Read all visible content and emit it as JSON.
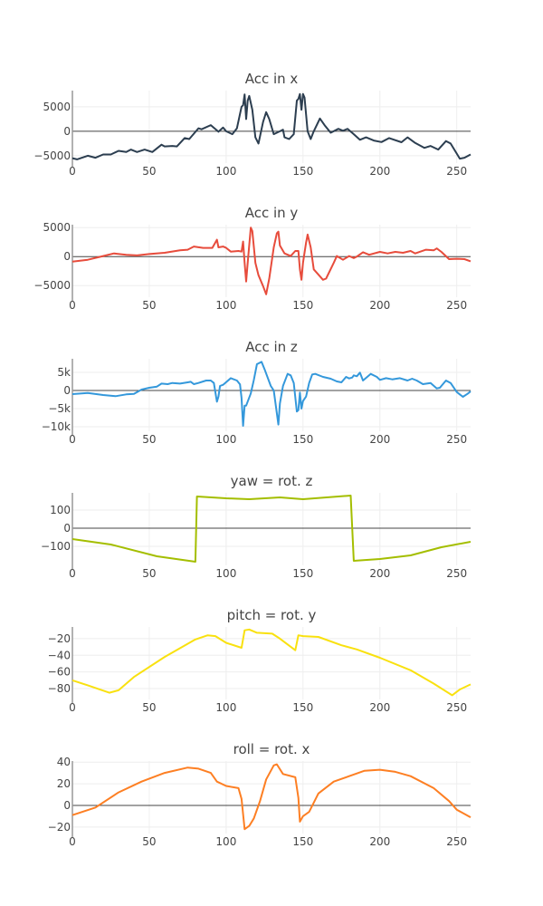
{
  "chart_data": [
    {
      "type": "line",
      "title": "Acc in x",
      "color": "#2c3e50",
      "xlim": [
        0,
        259
      ],
      "ylim": [
        -6500,
        8300
      ],
      "xticks": [
        0,
        50,
        100,
        150,
        200,
        250
      ],
      "xtick_labels": [
        "0",
        "50",
        "100",
        "150",
        "200",
        "250"
      ],
      "yticks": [
        5000,
        0,
        -5000
      ],
      "ytick_labels": [
        "5000",
        "0",
        "−5000"
      ],
      "x": [
        0,
        3,
        10,
        15,
        20,
        25,
        30,
        35,
        38,
        42,
        47,
        52,
        58,
        60,
        65,
        68,
        73,
        76,
        82,
        84,
        90,
        95,
        98,
        100,
        104,
        107,
        110,
        111,
        112,
        113,
        114,
        115,
        117,
        119,
        121,
        124,
        126,
        128,
        131,
        135,
        137,
        138,
        141,
        144,
        146,
        147,
        148,
        149,
        150,
        151,
        153,
        155,
        157,
        161,
        164,
        168,
        173,
        176,
        179,
        183,
        187,
        191,
        196,
        201,
        206,
        214,
        218,
        223,
        229,
        233,
        238,
        243,
        246,
        252,
        255,
        259
      ],
      "y": [
        -5500,
        -5750,
        -5000,
        -5400,
        -4750,
        -4750,
        -4000,
        -4250,
        -3750,
        -4250,
        -3750,
        -4250,
        -2750,
        -3100,
        -3000,
        -3100,
        -1400,
        -1600,
        600,
        400,
        1250,
        -100,
        750,
        0,
        -600,
        600,
        5000,
        5300,
        7500,
        2500,
        6250,
        7200,
        4400,
        -1250,
        -2500,
        1900,
        3900,
        2500,
        -600,
        0,
        300,
        -1250,
        -1600,
        -600,
        6250,
        6600,
        7600,
        4400,
        7600,
        6900,
        0,
        -1600,
        0,
        2600,
        1250,
        -300,
        500,
        100,
        500,
        -600,
        -1750,
        -1250,
        -1900,
        -2200,
        -1400,
        -2250,
        -1250,
        -2400,
        -3400,
        -3000,
        -3750,
        -2000,
        -2500,
        -5600,
        -5400,
        -4750
      ]
    },
    {
      "type": "line",
      "title": "Acc in y",
      "color": "#e74c3c",
      "xlim": [
        0,
        259
      ],
      "ylim": [
        -7000,
        5500
      ],
      "xticks": [
        0,
        50,
        100,
        150,
        200,
        250
      ],
      "xtick_labels": [
        "0",
        "50",
        "100",
        "150",
        "200",
        "250"
      ],
      "yticks": [
        5000,
        0,
        -5000
      ],
      "ytick_labels": [
        "5000",
        "0",
        "−5000"
      ],
      "x": [
        0,
        10,
        20,
        27,
        35,
        42,
        50,
        60,
        70,
        75,
        79,
        85,
        91,
        94,
        95,
        98,
        100,
        103,
        108,
        110,
        111,
        112,
        113,
        114,
        116,
        117,
        119,
        121,
        124,
        126,
        128,
        131,
        133,
        134,
        135,
        138,
        142,
        145,
        147,
        148,
        149,
        150,
        152,
        153,
        155,
        157,
        163,
        165,
        170,
        172,
        176,
        180,
        183,
        185,
        189,
        193,
        200,
        205,
        210,
        215,
        220,
        223,
        230,
        235,
        237,
        240,
        245,
        250,
        255,
        259
      ],
      "y": [
        -860,
        -540,
        100,
        540,
        320,
        200,
        430,
        650,
        1080,
        1190,
        1730,
        1500,
        1500,
        2900,
        1600,
        1730,
        1500,
        860,
        970,
        860,
        2600,
        -1080,
        -4300,
        -1080,
        5000,
        4400,
        -1080,
        -3200,
        -5100,
        -6500,
        -3800,
        1600,
        4000,
        4300,
        1900,
        540,
        100,
        970,
        970,
        -2200,
        -4000,
        -1080,
        2400,
        3800,
        1600,
        -2200,
        -4000,
        -3800,
        -1080,
        100,
        -540,
        100,
        -270,
        0,
        750,
        320,
        810,
        540,
        810,
        650,
        970,
        540,
        1190,
        1080,
        1400,
        810,
        -430,
        -380,
        -430,
        -810
      ]
    },
    {
      "type": "line",
      "title": "Acc in z",
      "color": "#3498db",
      "xlim": [
        0,
        259
      ],
      "ylim": [
        -11250,
        8750
      ],
      "xticks": [
        0,
        50,
        100,
        150,
        200,
        250
      ],
      "xtick_labels": [
        "0",
        "50",
        "100",
        "150",
        "200",
        "250"
      ],
      "yticks": [
        5000,
        0,
        -5000,
        -10000
      ],
      "ytick_labels": [
        "5k",
        "0",
        "−5k",
        "−10k"
      ],
      "x": [
        0,
        10,
        20,
        28,
        35,
        40,
        45,
        50,
        55,
        58,
        62,
        65,
        70,
        75,
        77,
        79,
        82,
        87,
        90,
        92,
        94,
        95,
        96,
        98,
        103,
        107,
        109,
        110,
        111,
        112,
        113,
        116,
        118,
        120,
        123,
        125,
        129,
        131,
        134,
        135,
        137,
        140,
        142,
        144,
        146,
        147,
        148,
        149,
        150,
        152,
        154,
        156,
        158,
        163,
        168,
        172,
        175,
        178,
        180,
        182,
        183,
        185,
        187,
        189,
        194,
        198,
        200,
        204,
        208,
        213,
        218,
        221,
        224,
        228,
        233,
        237,
        239,
        243,
        246,
        250,
        254,
        257,
        259
      ],
      "y": [
        -1000,
        -670,
        -1250,
        -1580,
        -1080,
        -920,
        250,
        750,
        1080,
        1900,
        1750,
        2080,
        1900,
        2250,
        2400,
        1750,
        2080,
        2750,
        2750,
        2080,
        -3100,
        -1670,
        1250,
        1580,
        3400,
        2750,
        1670,
        -2080,
        -9750,
        -4170,
        -4170,
        -830,
        2920,
        7250,
        7900,
        5830,
        1250,
        0,
        -9400,
        -3580,
        1250,
        4580,
        4170,
        2080,
        -5830,
        -5420,
        -580,
        -5000,
        -2920,
        -1670,
        2080,
        4420,
        4580,
        3750,
        3250,
        2500,
        2250,
        3750,
        3330,
        3580,
        4170,
        3920,
        4920,
        2750,
        4580,
        3750,
        2920,
        3400,
        3080,
        3400,
        2750,
        3250,
        2750,
        1750,
        2080,
        580,
        750,
        2750,
        2080,
        -420,
        -1750,
        -920,
        -250
      ]
    },
    {
      "type": "line",
      "title": "yaw = rot. z",
      "color": "#a4be00",
      "xlim": [
        0,
        259
      ],
      "ylim": [
        -205,
        195
      ],
      "xticks": [
        0,
        50,
        100,
        150,
        200,
        250
      ],
      "xtick_labels": [
        "0",
        "50",
        "100",
        "150",
        "200",
        "250"
      ],
      "yticks": [
        100,
        0,
        -100
      ],
      "ytick_labels": [
        "100",
        "0",
        "−100"
      ],
      "x": [
        0,
        25,
        55,
        80,
        81,
        100,
        115,
        135,
        150,
        181,
        183,
        200,
        220,
        240,
        259
      ],
      "y": [
        -60,
        -90,
        -155,
        -185,
        175,
        165,
        160,
        170,
        160,
        180,
        -180,
        -170,
        -150,
        -105,
        -75
      ]
    },
    {
      "type": "line",
      "title": "pitch = rot. y",
      "color": "#f9e10f",
      "xlim": [
        0,
        259
      ],
      "ylim": [
        -93,
        -6
      ],
      "xticks": [
        0,
        50,
        100,
        150,
        200,
        250
      ],
      "xtick_labels": [
        "0",
        "50",
        "100",
        "150",
        "200",
        "250"
      ],
      "yticks": [
        -20,
        -40,
        -60,
        -80
      ],
      "ytick_labels": [
        "−20",
        "−40",
        "−60",
        "−80"
      ],
      "x": [
        0,
        10,
        24,
        30,
        40,
        60,
        80,
        88,
        93,
        100,
        110,
        112,
        115,
        120,
        130,
        135,
        145,
        147,
        150,
        160,
        175,
        185,
        200,
        220,
        235,
        247,
        252,
        259
      ],
      "y": [
        -70,
        -76,
        -85,
        -82,
        -66,
        -42,
        -21,
        -16,
        -17,
        -25,
        -31,
        -10,
        -9,
        -13,
        -14,
        -20,
        -34,
        -16,
        -17,
        -18,
        -28,
        -33,
        -43,
        -58,
        -74,
        -88,
        -81,
        -75
      ]
    },
    {
      "type": "line",
      "title": "roll = rot. x",
      "color": "#fd7f23",
      "xlim": [
        0,
        259
      ],
      "ylim": [
        -26,
        41
      ],
      "xticks": [
        0,
        50,
        100,
        150,
        200,
        250
      ],
      "xtick_labels": [
        "0",
        "50",
        "100",
        "150",
        "200",
        "250"
      ],
      "yticks": [
        40,
        20,
        0,
        -20
      ],
      "ytick_labels": [
        "40",
        "20",
        "0",
        "−20"
      ],
      "x": [
        0,
        15,
        30,
        45,
        60,
        75,
        82,
        90,
        94,
        100,
        108,
        110,
        112,
        115,
        118,
        122,
        126,
        131,
        133,
        137,
        145,
        147,
        148,
        150,
        154,
        160,
        170,
        180,
        190,
        200,
        210,
        220,
        235,
        245,
        250,
        259
      ],
      "y": [
        -9,
        -2,
        12,
        22,
        30,
        35,
        34,
        30,
        22,
        18,
        16,
        6,
        -22,
        -19,
        -12,
        4,
        24,
        37,
        38,
        29,
        26,
        7,
        -15,
        -10,
        -6,
        11,
        22,
        27,
        32,
        33,
        31,
        27,
        16,
        4,
        -4,
        -11
      ]
    }
  ]
}
